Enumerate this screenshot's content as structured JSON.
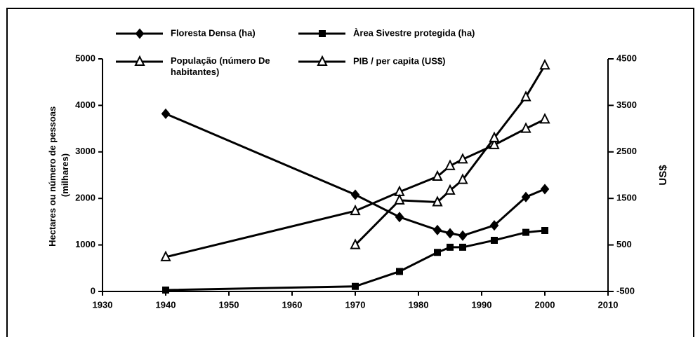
{
  "chart_data": {
    "type": "line",
    "ylabel": [
      "Hectares ou número de pessoas",
      "(milhares)"
    ],
    "y2label": "US$",
    "x": [
      1940,
      1970,
      1977,
      1983,
      1985,
      1987,
      1992,
      1997,
      2000
    ],
    "xlim": [
      1930,
      2010
    ],
    "xticks": [
      1930,
      1940,
      1950,
      1960,
      1970,
      1980,
      1990,
      2000,
      2010
    ],
    "ylim": [
      0,
      5000
    ],
    "yticks": [
      0,
      1000,
      2000,
      3000,
      4000,
      5000
    ],
    "y2lim": [
      -500,
      4500
    ],
    "y2ticks": [
      -500,
      500,
      1500,
      2500,
      3500,
      4500
    ],
    "series": [
      {
        "name": "Floresta Densa (ha)",
        "color": "#000000",
        "marker": "diamond",
        "values": [
          3820,
          2080,
          1600,
          1320,
          1250,
          1200,
          1420,
          2030,
          2200
        ]
      },
      {
        "name": "Àrea Sivestre protegida (ha)",
        "color": "#000000",
        "marker": "square",
        "values": [
          30,
          110,
          430,
          840,
          950,
          950,
          1100,
          1270,
          1310
        ]
      },
      {
        "name": "População (número De habitantes)",
        "color": "#000000",
        "marker": "triangle",
        "values": [
          740,
          1730,
          2140,
          2470,
          2700,
          2840,
          3150,
          3500,
          3700
        ]
      },
      {
        "name": "PIB / per capita (US$)",
        "color": "#000000",
        "marker": "triangle",
        "axis": "y2",
        "values": [
          null,
          500,
          1460,
          1420,
          1670,
          1900,
          2800,
          3680,
          4360
        ]
      }
    ]
  }
}
